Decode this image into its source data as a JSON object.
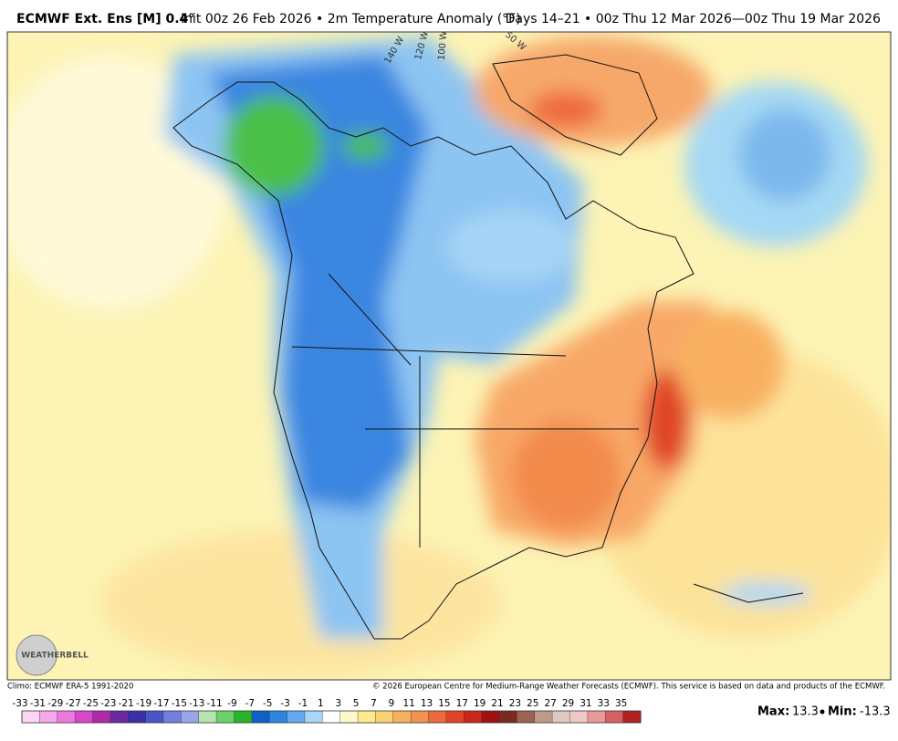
{
  "header": {
    "model": "ECMWF Ext. Ens [M] 0.4°",
    "description": "Init 00z 26 Feb 2026 • 2m Temperature Anomaly (°F)",
    "valid": "Days 14–21 • 00z Thu 12 Mar 2026—00z Thu 19 Mar 2026"
  },
  "map": {
    "longitude_labels": [
      "140 W",
      "120 W",
      "100 W",
      "50 W"
    ],
    "logo": "WEATHERBELL"
  },
  "footer": {
    "climo": "Climo: ECMWF ERA-5 1991-2020",
    "copyright": "© 2026 European Centre for Medium-Range Weather Forecasts (ECMWF). This service is based on data and products of the ECMWF."
  },
  "colorbar": {
    "ticks": [
      -33,
      -31,
      -29,
      -27,
      -25,
      -23,
      -21,
      -19,
      -17,
      -15,
      -13,
      -11,
      -9,
      -7,
      -5,
      -3,
      -1,
      1,
      3,
      5,
      7,
      9,
      11,
      13,
      15,
      17,
      19,
      21,
      23,
      25,
      27,
      29,
      31,
      33,
      35
    ],
    "colors": [
      "#fcd6f4",
      "#f6a8ea",
      "#ee78e0",
      "#d846cc",
      "#b02aa8",
      "#6a2a9e",
      "#3c2fa8",
      "#4a55c8",
      "#7080dc",
      "#9aa6ea",
      "#b4e4b0",
      "#6cd06c",
      "#28b428",
      "#1060c8",
      "#2c86e0",
      "#64aaee",
      "#a8d6f6",
      "#ffffff",
      "#fff8c8",
      "#fde98e",
      "#fbd070",
      "#f8b060",
      "#f49050",
      "#ee6a3c",
      "#e04428",
      "#c82818",
      "#a01010",
      "#7a2a20",
      "#9a6450",
      "#c09a88",
      "#e0c8c0",
      "#f0c8c8",
      "#e89898",
      "#d86060",
      "#b02020"
    ]
  },
  "stats": {
    "max_label": "Max:",
    "max": 13.3,
    "min_label": "Min:",
    "min": -13.3
  }
}
